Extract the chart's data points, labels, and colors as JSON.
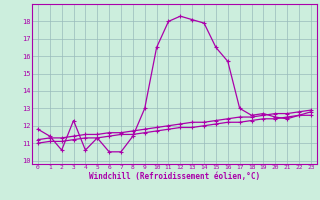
{
  "xlabel": "Windchill (Refroidissement éolien,°C)",
  "x": [
    0,
    1,
    2,
    3,
    4,
    5,
    6,
    7,
    8,
    9,
    10,
    11,
    12,
    13,
    14,
    15,
    16,
    17,
    18,
    19,
    20,
    21,
    22,
    23
  ],
  "line1_y": [
    11.8,
    11.4,
    10.6,
    12.3,
    10.6,
    11.3,
    10.5,
    10.5,
    11.4,
    13.0,
    16.5,
    18.0,
    18.3,
    18.1,
    17.9,
    16.5,
    15.7,
    13.0,
    12.6,
    12.7,
    12.5,
    12.4,
    12.6,
    12.8
  ],
  "line2_y": [
    11.2,
    11.3,
    11.3,
    11.4,
    11.5,
    11.5,
    11.6,
    11.6,
    11.7,
    11.8,
    11.9,
    12.0,
    12.1,
    12.2,
    12.2,
    12.3,
    12.4,
    12.5,
    12.5,
    12.6,
    12.7,
    12.7,
    12.8,
    12.9
  ],
  "line3_y": [
    11.0,
    11.1,
    11.1,
    11.2,
    11.3,
    11.3,
    11.4,
    11.5,
    11.5,
    11.6,
    11.7,
    11.8,
    11.9,
    11.9,
    12.0,
    12.1,
    12.2,
    12.2,
    12.3,
    12.4,
    12.4,
    12.5,
    12.6,
    12.6
  ],
  "line_color": "#aa00aa",
  "bg_color": "#cceedd",
  "grid_color": "#99bbbb",
  "ylim_min": 9.8,
  "ylim_max": 19.0,
  "yticks": [
    10,
    11,
    12,
    13,
    14,
    15,
    16,
    17,
    18
  ],
  "xticks": [
    0,
    1,
    2,
    3,
    4,
    5,
    6,
    7,
    8,
    9,
    10,
    11,
    12,
    13,
    14,
    15,
    16,
    17,
    18,
    19,
    20,
    21,
    22,
    23
  ],
  "tick_fontsize": 4.5,
  "xlabel_fontsize": 5.5,
  "linewidth": 0.9,
  "markersize": 2.5
}
